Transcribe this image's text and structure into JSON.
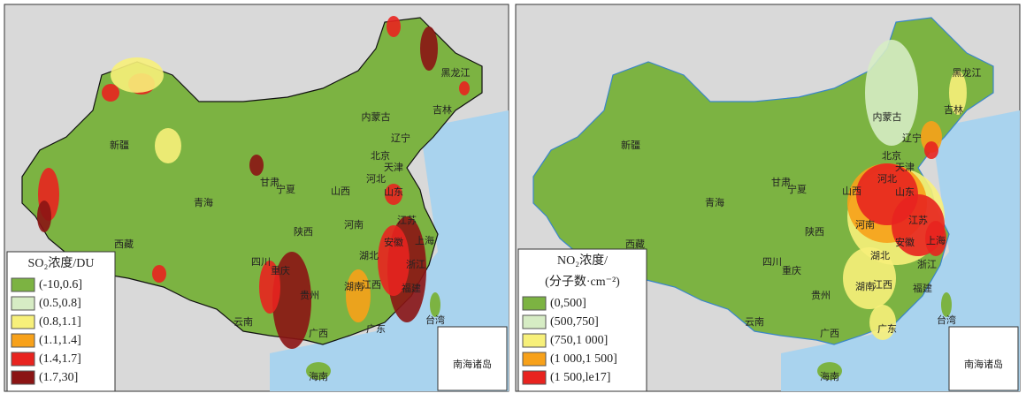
{
  "panels": [
    {
      "legend_title": [
        "SO₂浓度/DU"
      ],
      "legend_items": [
        {
          "label": "(-10,0.6]",
          "color": "#7cb342"
        },
        {
          "label": "(0.5,0.8]",
          "color": "#d6ecc4"
        },
        {
          "label": "(0.8,1.1]",
          "color": "#f7f07a"
        },
        {
          "label": "(1.1,1.4]",
          "color": "#f7a11a"
        },
        {
          "label": "(1.4,1.7]",
          "color": "#e8231f"
        },
        {
          "label": "(1.7,30]",
          "color": "#8b1414"
        }
      ],
      "labels": [
        "新疆",
        "西藏",
        "青海",
        "内蒙古",
        "黑龙江",
        "吉林",
        "辽宁",
        "北京",
        "天津",
        "河北",
        "山西",
        "山东",
        "甘肃",
        "宁夏",
        "陕西",
        "河南",
        "江苏",
        "安徽",
        "上海",
        "湖北",
        "四川",
        "重庆",
        "浙江",
        "湖南",
        "江西",
        "贵州",
        "云南",
        "福建",
        "广西",
        "广东",
        "台湾",
        "海南"
      ],
      "inset_label": "南海诸岛"
    },
    {
      "legend_title": [
        "NO₂浓度/",
        "(分子数·cm⁻²)"
      ],
      "legend_items": [
        {
          "label": "(0,500]",
          "color": "#7cb342"
        },
        {
          "label": "(500,750]",
          "color": "#d6ecc4"
        },
        {
          "label": "(750,1 000]",
          "color": "#f7f07a"
        },
        {
          "label": "(1 000,1 500]",
          "color": "#f7a11a"
        },
        {
          "label": "(1 500,le17]",
          "color": "#e8231f"
        }
      ],
      "labels": [
        "新疆",
        "西藏",
        "青海",
        "内蒙古",
        "黑龙江",
        "吉林",
        "辽宁",
        "北京",
        "天津",
        "河北",
        "山西",
        "山东",
        "甘肃",
        "宁夏",
        "陕西",
        "河南",
        "江苏",
        "安徽",
        "上海",
        "湖北",
        "四川",
        "重庆",
        "浙江",
        "湖南",
        "江西",
        "贵州",
        "云南",
        "福建",
        "广西",
        "广东",
        "台湾",
        "海南"
      ],
      "inset_label": "南海诸岛"
    }
  ]
}
